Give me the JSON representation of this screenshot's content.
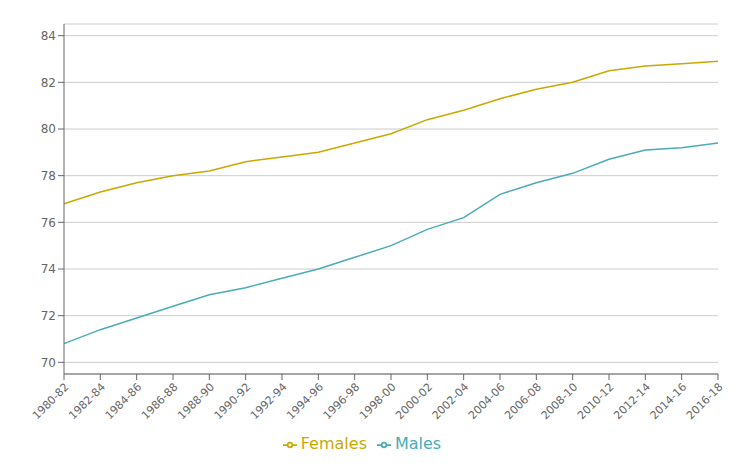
{
  "chart_data": {
    "type": "line",
    "categories": [
      "1980-82",
      "1982-84",
      "1984-86",
      "1986-88",
      "1988-90",
      "1990-92",
      "1992-94",
      "1994-96",
      "1996-98",
      "1998-00",
      "2000-02",
      "2002-04",
      "2004-06",
      "2006-08",
      "2008-10",
      "2010-12",
      "2012-14",
      "2014-16",
      "2016-18"
    ],
    "series": [
      {
        "name": "Males",
        "color": "#4AABB8",
        "values": [
          70.8,
          71.4,
          71.9,
          72.4,
          72.9,
          73.2,
          73.6,
          74.0,
          74.5,
          75.0,
          75.7,
          76.2,
          77.2,
          77.7,
          78.1,
          78.7,
          79.1,
          79.2,
          79.4
        ]
      },
      {
        "name": "Females",
        "color": "#C9A800",
        "values": [
          76.8,
          77.3,
          77.7,
          78.0,
          78.2,
          78.6,
          78.8,
          79.0,
          79.4,
          79.8,
          80.4,
          80.8,
          81.3,
          81.7,
          82.0,
          82.5,
          82.7,
          82.8,
          82.9
        ]
      }
    ],
    "ylim": [
      69.5,
      84.5
    ],
    "yticks": [
      70,
      72,
      74,
      76,
      78,
      80,
      82,
      84
    ],
    "grid": true,
    "legend": "bottom"
  }
}
